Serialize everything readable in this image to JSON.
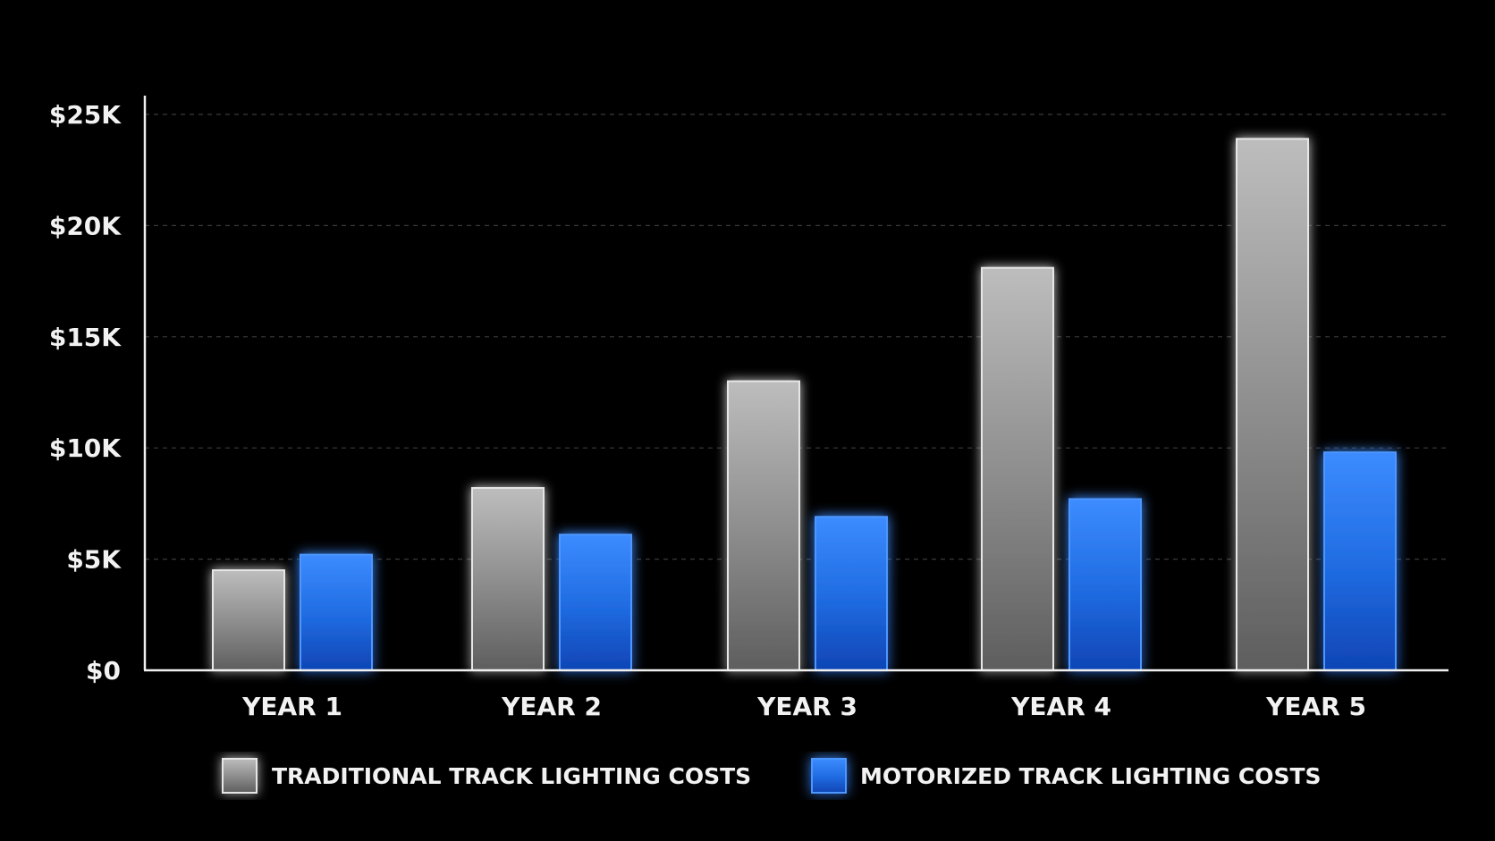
{
  "chart_data": {
    "type": "bar",
    "categories": [
      "YEAR 1",
      "YEAR 2",
      "YEAR 3",
      "YEAR 4",
      "YEAR 5"
    ],
    "series": [
      {
        "name": "TRADITIONAL TRACK LIGHTING COSTS",
        "values": [
          4500,
          8200,
          13000,
          18100,
          23900
        ],
        "color": "#9a9a9a"
      },
      {
        "name": "MOTORIZED TRACK LIGHTING COSTS",
        "values": [
          5200,
          6100,
          6900,
          7700,
          9800
        ],
        "color": "#1e6fe6"
      }
    ],
    "yticks": [
      {
        "value": 0,
        "label": "$0"
      },
      {
        "value": 5000,
        "label": "$5K"
      },
      {
        "value": 10000,
        "label": "$10K"
      },
      {
        "value": 15000,
        "label": "$15K"
      },
      {
        "value": 20000,
        "label": "$20K"
      },
      {
        "value": 25000,
        "label": "$25K"
      }
    ],
    "ylim": [
      0,
      25000
    ],
    "grid": true,
    "legend_position": "bottom",
    "title": "",
    "xlabel": "",
    "ylabel": ""
  }
}
